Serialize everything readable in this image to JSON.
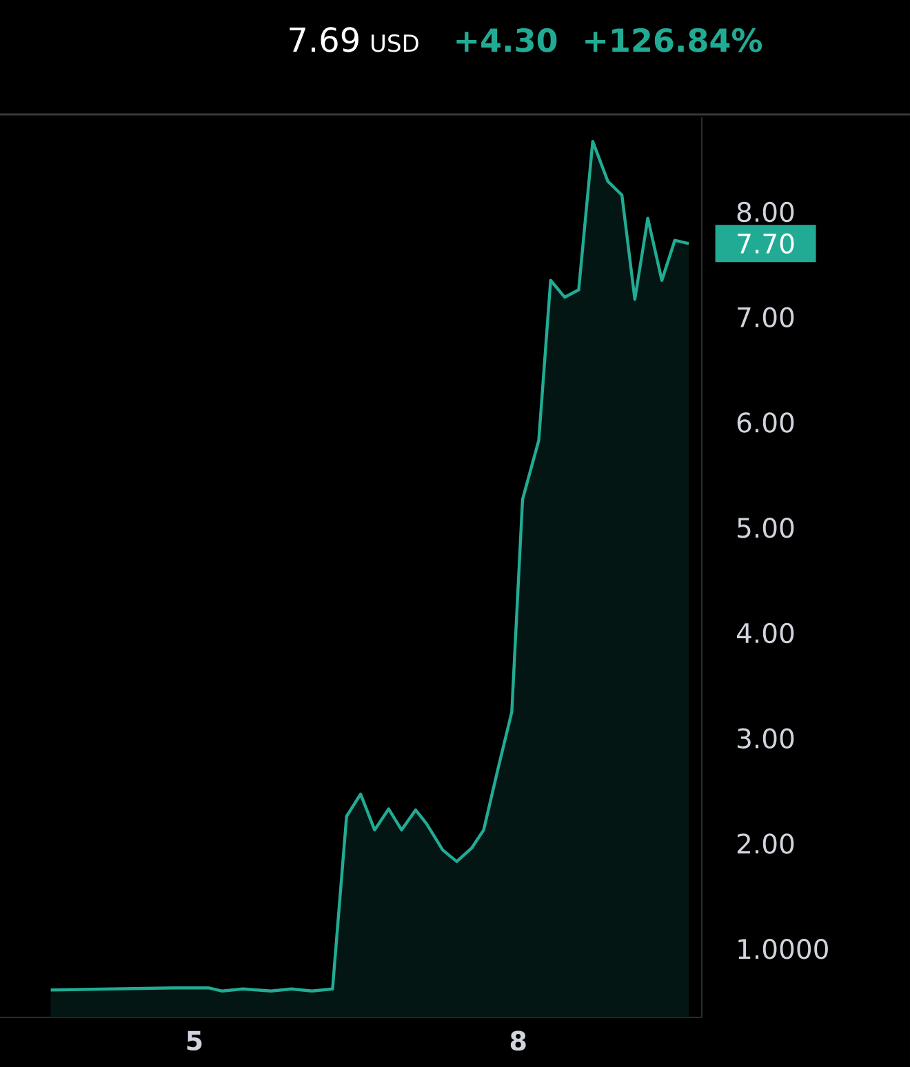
{
  "chart_data": {
    "type": "area",
    "color": "#22ab94",
    "x": [
      3.67,
      4.24,
      4.81,
      5.13,
      5.26,
      5.45,
      5.71,
      5.9,
      6.09,
      6.28,
      6.41,
      6.54,
      6.67,
      6.8,
      6.92,
      7.05,
      7.15,
      7.3,
      7.43,
      7.57,
      7.68,
      7.81,
      7.94,
      8.04,
      8.19,
      8.3,
      8.43,
      8.56,
      8.69,
      8.83,
      8.96,
      9.08,
      9.2,
      9.33,
      9.45,
      9.58
    ],
    "values": [
      0.61,
      0.62,
      0.63,
      0.63,
      0.6,
      0.62,
      0.6,
      0.62,
      0.6,
      0.62,
      2.26,
      2.47,
      2.13,
      2.33,
      2.13,
      2.32,
      2.19,
      1.94,
      1.83,
      1.96,
      2.13,
      2.7,
      3.25,
      5.27,
      5.83,
      7.35,
      7.19,
      7.26,
      8.67,
      8.29,
      8.16,
      7.17,
      7.94,
      7.35,
      7.73,
      7.7
    ],
    "xlim": [
      3.2,
      9.7
    ],
    "xticks": [
      5,
      8
    ],
    "ylim": [
      0.35,
      8.9
    ],
    "yticks": [
      {
        "value": 1,
        "label": "1.0000"
      },
      {
        "value": 2,
        "label": "2.00"
      },
      {
        "value": 3,
        "label": "3.00"
      },
      {
        "value": 4,
        "label": "4.00"
      },
      {
        "value": 5,
        "label": "5.00"
      },
      {
        "value": 6,
        "label": "6.00"
      },
      {
        "value": 7,
        "label": "7.00"
      },
      {
        "value": 8,
        "label": "8.00"
      }
    ],
    "annotations": [
      "7.69",
      "USD",
      "+4.30",
      "+126.84%",
      {
        "text": "7.70",
        "x": 9.58,
        "y": 7.7
      }
    ]
  }
}
